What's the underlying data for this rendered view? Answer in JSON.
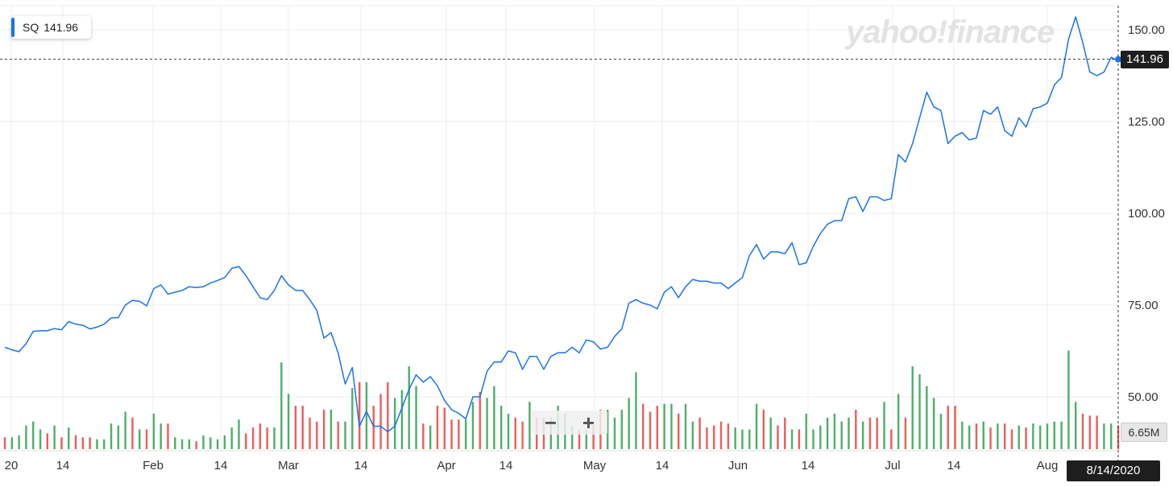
{
  "legend": {
    "symbol": "SQ",
    "price": "141.96"
  },
  "watermark": "yahoo!finance",
  "last_price_label": "141.96",
  "volume_label": "6.65M",
  "date_label": "8/14/2020",
  "zoom": {
    "out": "−",
    "in": "+"
  },
  "colors": {
    "line": "#1a73e8",
    "vol_up": "#4caf6a",
    "vol_down": "#ef5b5b"
  },
  "chart_data": {
    "type": "line",
    "title": "",
    "ylabel": "",
    "xlabel": "",
    "ylim": [
      40,
      155
    ],
    "y_ticks": [
      "150.00",
      "125.00",
      "100.00",
      "75.00",
      "50.00"
    ],
    "x_tick_labels": [
      "20",
      "14",
      "Feb",
      "14",
      "Mar",
      "14",
      "Apr",
      "14",
      "May",
      "14",
      "Jun",
      "14",
      "Jul",
      "14",
      "Aug"
    ],
    "grid": true,
    "legend_position": "top-left",
    "series": [
      {
        "name": "SQ",
        "values": [
          63.5,
          62.8,
          62.3,
          64.5,
          67.8,
          68.0,
          68.0,
          68.6,
          68.3,
          70.5,
          69.8,
          69.5,
          68.5,
          69.0,
          69.8,
          71.5,
          71.6,
          75.0,
          76.3,
          76.0,
          74.8,
          79.5,
          80.5,
          78.0,
          78.5,
          79.0,
          80.0,
          79.8,
          80.0,
          81.0,
          81.7,
          82.5,
          85.0,
          85.5,
          83.0,
          80.0,
          77.0,
          76.5,
          79.0,
          83.0,
          80.5,
          79.0,
          79.0,
          76.5,
          73.5,
          66.0,
          67.5,
          62.0,
          53.5,
          58.0,
          42.0,
          46.0,
          42.0,
          42.0,
          40.5,
          42.0,
          47.0,
          52.0,
          56.0,
          54.0,
          55.5,
          53.0,
          49.0,
          46.5,
          45.5,
          44.0,
          50.0,
          50.0,
          57.0,
          59.5,
          59.5,
          62.5,
          62.0,
          57.5,
          61.0,
          61.0,
          57.5,
          61.0,
          62.0,
          62.0,
          63.5,
          62.0,
          65.5,
          65.0,
          63.0,
          63.5,
          66.5,
          68.5,
          75.5,
          76.5,
          75.5,
          75.0,
          74.0,
          78.5,
          80.0,
          77.0,
          80.0,
          82.0,
          81.5,
          81.5,
          81.0,
          81.0,
          79.5,
          81.0,
          82.5,
          88.5,
          91.5,
          87.5,
          89.5,
          89.5,
          89.0,
          92.0,
          86.0,
          86.5,
          91.0,
          94.5,
          97.0,
          98.0,
          98.0,
          104.0,
          104.5,
          100.5,
          104.5,
          104.5,
          103.5,
          104.0,
          116.0,
          114.0,
          119.0,
          126.0,
          133.0,
          129.0,
          128.0,
          119.0,
          121.0,
          122.0,
          120.0,
          120.5,
          128.0,
          127.0,
          129.0,
          122.5,
          121.0,
          126.0,
          123.5,
          128.5,
          129.0,
          130.0,
          135.0,
          137.0,
          147.5,
          153.5,
          146.5,
          138.5,
          137.5,
          138.5,
          142.5,
          141.5
        ]
      }
    ],
    "volume": {
      "values": [
        3.0,
        3.0,
        3.5,
        6.0,
        7.0,
        5.0,
        4.0,
        6.0,
        3.0,
        5.5,
        3.5,
        3.0,
        3.0,
        2.5,
        2.5,
        6.5,
        6.0,
        9.5,
        8.0,
        5.0,
        5.0,
        9.0,
        6.5,
        6.5,
        3.0,
        2.5,
        2.5,
        2.0,
        3.5,
        3.0,
        2.5,
        3.5,
        5.5,
        7.5,
        4.0,
        5.5,
        6.5,
        5.5,
        5.5,
        22.0,
        14.0,
        11.0,
        11.0,
        8.0,
        7.0,
        10.0,
        10.0,
        7.0,
        7.0,
        15.5,
        17.0,
        17.0,
        11.0,
        14.0,
        17.0,
        13.0,
        15.0,
        21.0,
        16.0,
        6.5,
        6.0,
        11.0,
        10.5,
        7.5,
        7.5,
        7.5,
        12.0,
        14.5,
        13.0,
        16.0,
        11.0,
        9.0,
        8.0,
        7.0,
        12.0,
        8.0,
        8.0,
        8.0,
        11.0,
        9.0,
        6.0,
        5.0,
        5.0,
        6.0,
        10.0,
        10.0,
        8.0,
        10.0,
        13.0,
        19.5,
        11.5,
        9.5,
        11.0,
        11.5,
        11.5,
        9.0,
        11.5,
        7.0,
        8.0,
        5.5,
        6.0,
        7.0,
        6.5,
        5.5,
        5.0,
        5.0,
        11.5,
        10.0,
        8.0,
        6.0,
        8.0,
        5.0,
        5.0,
        9.0,
        5.0,
        6.0,
        8.0,
        9.0,
        7.0,
        8.0,
        10.0,
        7.0,
        8.0,
        8.0,
        12.0,
        5.0,
        14.0,
        8.0,
        21.0,
        19.0,
        16.0,
        13.0,
        9.0,
        11.0,
        11.0,
        7.0,
        6.0,
        6.5,
        7.0,
        5.5,
        6.5,
        6.5,
        5.0,
        6.0,
        5.5,
        6.5,
        6.0,
        6.5,
        7.0,
        7.0,
        25.0,
        12.0,
        9.0,
        8.5,
        8.5,
        6.5,
        6.5,
        6.0
      ],
      "up": [
        0,
        1,
        1,
        1,
        1,
        1,
        0,
        1,
        0,
        1,
        0,
        0,
        0,
        1,
        1,
        1,
        1,
        1,
        0,
        1,
        0,
        1,
        1,
        0,
        1,
        1,
        1,
        0,
        1,
        1,
        1,
        1,
        1,
        1,
        0,
        0,
        0,
        0,
        1,
        1,
        1,
        0,
        0,
        0,
        0,
        0,
        1,
        0,
        1,
        1,
        0,
        1,
        0,
        0,
        0,
        1,
        1,
        1,
        1,
        0,
        1,
        0,
        0,
        0,
        0,
        1,
        1,
        0,
        1,
        1,
        1,
        1,
        0,
        0,
        1,
        0,
        0,
        1,
        1,
        1,
        1,
        0,
        1,
        0,
        0,
        1,
        1,
        1,
        1,
        1,
        0,
        0,
        0,
        1,
        1,
        0,
        1,
        1,
        0,
        0,
        0,
        0,
        0,
        1,
        1,
        1,
        1,
        0,
        1,
        0,
        0,
        1,
        0,
        1,
        1,
        1,
        1,
        1,
        1,
        1,
        0,
        1,
        0,
        0,
        1,
        0,
        1,
        0,
        1,
        1,
        1,
        1,
        1,
        0,
        0,
        1,
        1,
        0,
        1,
        0,
        1,
        0,
        0,
        1,
        0,
        1,
        1,
        1,
        1,
        1,
        1,
        1,
        0,
        0,
        0,
        1,
        1,
        0
      ]
    }
  }
}
